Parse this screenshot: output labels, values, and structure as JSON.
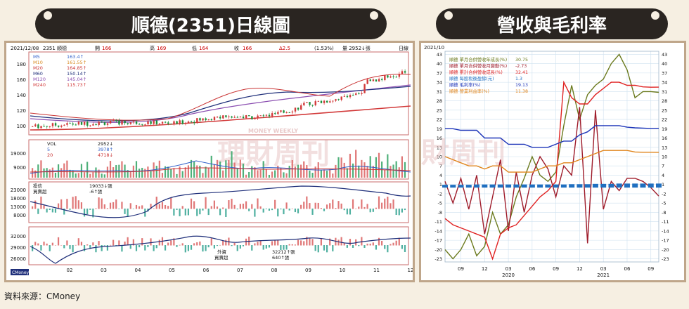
{
  "left_title": "順德(2351)日線圖",
  "right_title": "營收與毛利率",
  "source": "資料來源：CMoney",
  "watermark": "理財周刊",
  "watermark_small": "MONEY WEEKLY",
  "left_chart": {
    "header": {
      "date": "2021/12/08",
      "stock": "2351 順德",
      "open_label": "開",
      "open": "166",
      "high_label": "高",
      "high": "169",
      "low_label": "低",
      "low": "164",
      "close_label": "收",
      "close": "166",
      "change": "Δ2.5",
      "pct": "(1.53%)",
      "volume": "量 2952↓張",
      "period": "日線"
    },
    "ma_legend": [
      {
        "label": "M5",
        "value": "163.4↑",
        "color": "#2f5fc9"
      },
      {
        "label": "M10",
        "value": "161.55↑",
        "color": "#d98a20"
      },
      {
        "label": "M20",
        "value": "164.85↑",
        "color": "#c93333"
      },
      {
        "label": "M60",
        "value": "150.14↑",
        "color": "#1f2f7a"
      },
      {
        "label": "M120",
        "value": "145.04↑",
        "color": "#8a4db0"
      },
      {
        "label": "M240",
        "value": "115.73↑",
        "color": "#d23a3a"
      }
    ],
    "price_ticks": [
      "180",
      "160",
      "140",
      "120",
      "100"
    ],
    "vol_legend": [
      {
        "label": "VOL",
        "value": "2952↓"
      },
      {
        "label": "5",
        "value": "3978↑"
      },
      {
        "label": "20",
        "value": "4718↓"
      }
    ],
    "vol_ticks": [
      "19000",
      "9000"
    ],
    "trust_legend": {
      "label1": "投信",
      "label2": "買賣超",
      "value1": "19033↓張",
      "value2": "-6↑張"
    },
    "trust_ticks": [
      "23000",
      "18000",
      "13000",
      "8000"
    ],
    "foreign_legend": {
      "label1": "外資",
      "label2": "買賣超",
      "value1": "32212↑張",
      "value2": "640↑張"
    },
    "foreign_ticks": [
      "32000",
      "29000",
      "26000"
    ],
    "x_ticks": [
      "02",
      "03",
      "04",
      "05",
      "06",
      "07",
      "08",
      "09",
      "10",
      "11",
      "12"
    ],
    "footer_label": "CMoney"
  },
  "chart_data": {
    "type": "line",
    "title": "營收與毛利率",
    "period_label": "2021/10",
    "x": [
      "2019/07",
      "2019/08",
      "2019/09",
      "2019/10",
      "2019/11",
      "2019/12",
      "2020/01",
      "2020/02",
      "2020/03",
      "2020/04",
      "2020/05",
      "2020/06",
      "2020/07",
      "2020/08",
      "2020/09",
      "2020/10",
      "2020/11",
      "2020/12",
      "2021/01",
      "2021/02",
      "2021/03",
      "2021/04",
      "2021/05",
      "2021/06",
      "2021/07",
      "2021/08",
      "2021/09",
      "2021/10"
    ],
    "x_tick_labels": [
      "09",
      "12",
      "03",
      "06",
      "09",
      "12",
      "03",
      "06",
      "09"
    ],
    "x_tick_months": [
      "2019/09",
      "2019/12",
      "2020/03",
      "2020/06",
      "2020/09",
      "2020/12",
      "2021/03",
      "2021/06",
      "2021/09"
    ],
    "year_labels": [
      {
        "label": "2020",
        "month": "2020/03"
      },
      {
        "label": "2021",
        "month": "2021/03"
      }
    ],
    "ylim": [
      -24,
      44
    ],
    "y_ticks": [
      "43",
      "40",
      "37",
      "34",
      "31",
      "28",
      "25",
      "22",
      "19",
      "16",
      "13",
      "10",
      "7",
      "4",
      "1",
      "-2",
      "-5",
      "-8",
      "-11",
      "-14",
      "-17",
      "-20",
      "-23"
    ],
    "series": [
      {
        "name": "順德 單月合併營收年成長(%)",
        "last": "30.75",
        "color": "#6b7a1e",
        "values": [
          -20,
          -23,
          -20,
          -15,
          -22,
          -19,
          -8,
          -15,
          -12,
          -3,
          3,
          10,
          4,
          2,
          5,
          20,
          33,
          22,
          30,
          33,
          35,
          40,
          43,
          38,
          29,
          31,
          31,
          30.75
        ]
      },
      {
        "name": "順德 單月合併營收月變動(%)",
        "last": "-2.73",
        "color": "#9e1b2a",
        "values": [
          2,
          -5,
          3,
          -7,
          4,
          -15,
          -3,
          9,
          -14,
          5,
          -8,
          4,
          10,
          6,
          -3,
          7,
          4,
          26,
          -18,
          25,
          -7,
          2,
          -1,
          3,
          3,
          2,
          0,
          -2.73
        ]
      },
      {
        "name": "順德 累計合併營收成長(%)",
        "last": "32.41",
        "color": "#e02222",
        "values": [
          -10,
          -12,
          -13,
          -14,
          -15,
          -16,
          -23,
          -15,
          -13,
          -12,
          -9,
          -6,
          -3,
          -1,
          2,
          34,
          29,
          27,
          27,
          30,
          32,
          34,
          34,
          33,
          33,
          32.5,
          32.4,
          32.41
        ]
      },
      {
        "name": "順德 每股稅後盈餘(元)",
        "last": "1.3",
        "color": "#1f6fc0",
        "kind": "bar",
        "values": [
          0.9,
          0.9,
          0.9,
          0.9,
          1,
          1,
          1,
          1,
          1,
          1,
          1,
          1,
          1,
          1,
          1,
          1,
          1.1,
          1.1,
          1.1,
          1.2,
          1.2,
          1.2,
          1.3,
          1.3,
          1.3,
          1.3,
          1.3,
          1.3
        ]
      },
      {
        "name": "順德 毛利率(%)",
        "last": "19.13",
        "color": "#1b33b8",
        "values": [
          19,
          19,
          18.5,
          18.5,
          18.5,
          16,
          16,
          16,
          14,
          14,
          14,
          13,
          13,
          13,
          14,
          15,
          15,
          17,
          18,
          20,
          20,
          20,
          20,
          19.5,
          19.3,
          19.2,
          19.1,
          19.13
        ]
      },
      {
        "name": "順德 營業利益率(%)",
        "last": "11.38",
        "color": "#e0851c",
        "values": [
          10,
          9,
          8,
          7,
          7,
          6,
          7,
          7,
          5,
          5,
          5,
          5,
          6,
          7,
          7,
          8,
          8,
          9,
          10,
          11,
          12,
          12,
          12,
          12,
          11.5,
          11.4,
          11.4,
          11.38
        ]
      }
    ]
  }
}
